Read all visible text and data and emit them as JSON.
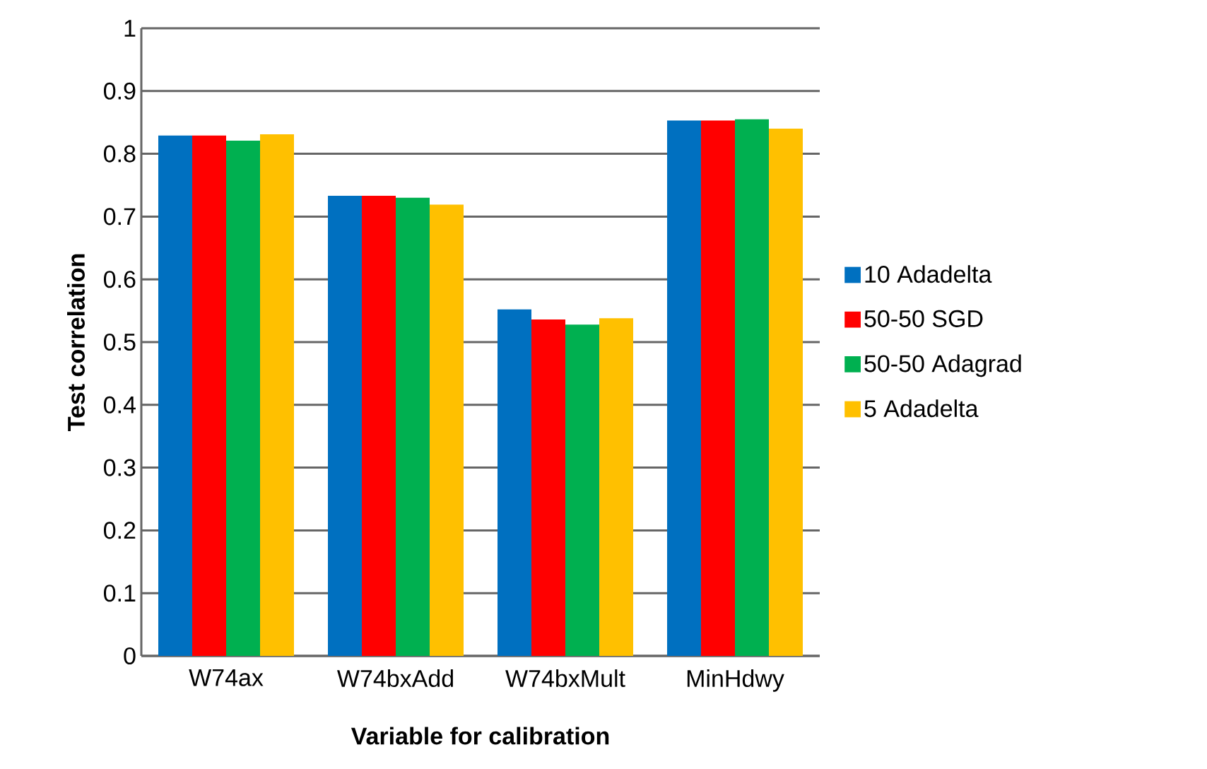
{
  "chart_data": {
    "type": "bar",
    "xlabel": "Variable for calibration",
    "ylabel": "Test correlation",
    "categories": [
      "W74ax",
      "W74bxAdd",
      "W74bxMult",
      "MinHdwy"
    ],
    "series": [
      {
        "name": "10 Adadelta",
        "color": "#0070c0",
        "values": [
          0.829,
          0.733,
          0.552,
          0.853
        ]
      },
      {
        "name": "50-50 SGD",
        "color": "#ff0000",
        "values": [
          0.829,
          0.733,
          0.536,
          0.853
        ]
      },
      {
        "name": "50-50 Adagrad",
        "color": "#00b050",
        "values": [
          0.821,
          0.73,
          0.528,
          0.855
        ]
      },
      {
        "name": "5 Adadelta",
        "color": "#ffc000",
        "values": [
          0.831,
          0.719,
          0.538,
          0.84
        ]
      }
    ],
    "ylim": [
      0,
      1
    ],
    "yticks": [
      0,
      0.1,
      0.2,
      0.3,
      0.4,
      0.5,
      0.6,
      0.7,
      0.8,
      0.9,
      1
    ],
    "grid": "y",
    "legend": "right"
  }
}
